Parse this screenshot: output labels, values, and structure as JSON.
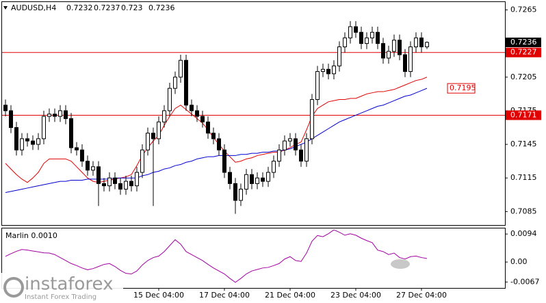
{
  "chart_data": [
    {
      "type": "candlestick",
      "title": "AUDUSD,H4",
      "categories": [
        null,
        null,
        null,
        null,
        null,
        null,
        null,
        null,
        null,
        null,
        null,
        null,
        null,
        null,
        null,
        null,
        null,
        null,
        null,
        null,
        null,
        null,
        null,
        null,
        null,
        null,
        null,
        null,
        "15 Dec 04:00",
        null,
        null,
        null,
        null,
        null,
        null,
        null,
        null,
        null,
        null,
        null,
        "17 Dec 04:00",
        null,
        null,
        null,
        null,
        null,
        null,
        null,
        null,
        null,
        null,
        null,
        "21 Dec 04:00",
        null,
        null,
        null,
        null,
        null,
        null,
        null,
        null,
        null,
        null,
        null,
        "23 Dec 04:00",
        null,
        null,
        null,
        null,
        null,
        null,
        null,
        null,
        null,
        null,
        null,
        "27 Dec 04:00",
        null
      ],
      "open": [
        0.718,
        0.7175,
        0.716,
        0.714,
        0.715,
        0.7148,
        0.7145,
        0.715,
        0.717,
        0.7172,
        0.717,
        0.7175,
        0.7168,
        0.7142,
        0.714,
        0.713,
        0.7122,
        0.7125,
        0.711,
        0.7108,
        0.7115,
        0.711,
        0.7105,
        0.7112,
        0.7108,
        0.712,
        0.714,
        0.7155,
        0.715,
        0.7165,
        0.7175,
        0.7195,
        0.7205,
        0.722,
        0.718,
        0.7175,
        0.717,
        0.7165,
        0.7155,
        0.715,
        0.714,
        0.712,
        0.711,
        0.7095,
        0.7105,
        0.7118,
        0.711,
        0.7115,
        0.7112,
        0.712,
        0.713,
        0.714,
        0.7148,
        0.715,
        0.714,
        0.713,
        0.715,
        0.7185,
        0.721,
        0.7212,
        0.7208,
        0.7215,
        0.7232,
        0.724,
        0.725,
        0.7245,
        0.7235,
        0.724,
        0.7245,
        0.7235,
        0.7222,
        0.7228,
        0.7238,
        0.7225,
        0.721,
        0.7232,
        0.724,
        0.7232
      ],
      "high": [
        0.7185,
        0.718,
        0.7165,
        0.7155,
        0.7155,
        0.7153,
        0.7155,
        0.7175,
        0.7177,
        0.7177,
        0.718,
        0.718,
        0.7173,
        0.7147,
        0.7145,
        0.7135,
        0.713,
        0.713,
        0.7115,
        0.712,
        0.712,
        0.7115,
        0.7117,
        0.7117,
        0.7125,
        0.7145,
        0.716,
        0.716,
        0.717,
        0.718,
        0.72,
        0.721,
        0.7225,
        0.7225,
        0.7185,
        0.718,
        0.7175,
        0.717,
        0.716,
        0.7155,
        0.7145,
        0.7125,
        0.7115,
        0.711,
        0.7123,
        0.7123,
        0.712,
        0.712,
        0.7125,
        0.7135,
        0.7145,
        0.7153,
        0.7155,
        0.7155,
        0.7145,
        0.7155,
        0.719,
        0.7215,
        0.7217,
        0.7217,
        0.722,
        0.7237,
        0.7245,
        0.7255,
        0.7255,
        0.725,
        0.7245,
        0.725,
        0.725,
        0.724,
        0.7233,
        0.7243,
        0.7243,
        0.723,
        0.7237,
        0.7245,
        0.7245,
        0.7237
      ],
      "low": [
        0.717,
        0.7155,
        0.7135,
        0.7135,
        0.7143,
        0.714,
        0.714,
        0.7145,
        0.7165,
        0.7165,
        0.7165,
        0.7163,
        0.7137,
        0.7135,
        0.7125,
        0.7117,
        0.7117,
        0.709,
        0.7103,
        0.7103,
        0.7105,
        0.71,
        0.71,
        0.7103,
        0.7103,
        0.7115,
        0.7135,
        0.709,
        0.7145,
        0.716,
        0.717,
        0.719,
        0.72,
        0.7175,
        0.717,
        0.7165,
        0.716,
        0.715,
        0.7145,
        0.7135,
        0.7115,
        0.7105,
        0.7083,
        0.709,
        0.71,
        0.7105,
        0.7105,
        0.7107,
        0.7107,
        0.7115,
        0.7125,
        0.7135,
        0.7143,
        0.7135,
        0.7125,
        0.7125,
        0.7145,
        0.718,
        0.7205,
        0.7203,
        0.7203,
        0.721,
        0.7227,
        0.7235,
        0.724,
        0.723,
        0.723,
        0.7235,
        0.723,
        0.7217,
        0.7217,
        0.7223,
        0.722,
        0.7205,
        0.7205,
        0.7227,
        0.7227,
        0.723
      ],
      "close": [
        0.7175,
        0.716,
        0.714,
        0.715,
        0.7148,
        0.7145,
        0.715,
        0.717,
        0.7172,
        0.717,
        0.7175,
        0.7168,
        0.7142,
        0.714,
        0.713,
        0.7122,
        0.7125,
        0.711,
        0.7108,
        0.7115,
        0.711,
        0.7105,
        0.7112,
        0.7108,
        0.712,
        0.714,
        0.7155,
        0.715,
        0.7165,
        0.7175,
        0.7195,
        0.7205,
        0.722,
        0.718,
        0.7175,
        0.717,
        0.7165,
        0.7155,
        0.715,
        0.714,
        0.712,
        0.711,
        0.7095,
        0.7105,
        0.7118,
        0.711,
        0.7115,
        0.7112,
        0.712,
        0.713,
        0.714,
        0.7148,
        0.715,
        0.714,
        0.713,
        0.715,
        0.7185,
        0.721,
        0.7212,
        0.7208,
        0.7215,
        0.7232,
        0.724,
        0.725,
        0.7245,
        0.7235,
        0.724,
        0.7245,
        0.7235,
        0.7222,
        0.7228,
        0.7238,
        0.7225,
        0.721,
        0.7232,
        0.724,
        0.7232,
        0.7236
      ],
      "series": [
        {
          "color": "#e00000",
          "values": [
            0.7128,
            0.7123,
            0.7118,
            0.7114,
            0.7111,
            0.7115,
            0.712,
            0.7128,
            0.7132,
            0.7132,
            0.7132,
            0.7132,
            0.713,
            0.7125,
            0.712,
            0.7115,
            0.7112,
            0.7111,
            0.7112,
            0.7113,
            0.7114,
            0.7115,
            0.7116,
            0.7118,
            0.7126,
            0.7135,
            0.7142,
            0.7148,
            0.7153,
            0.7162,
            0.717,
            0.7177,
            0.718,
            0.7176,
            0.7172,
            0.7168,
            0.7164,
            0.7158,
            0.7151,
            0.7145,
            0.7139,
            0.7134,
            0.7129,
            0.713,
            0.7132,
            0.7133,
            0.7135,
            0.7136,
            0.7137,
            0.7138,
            0.7138,
            0.714,
            0.7142,
            0.7145,
            0.7147,
            0.7158,
            0.717,
            0.7177,
            0.718,
            0.7183,
            0.7184,
            0.7185,
            0.7185,
            0.7186,
            0.7186,
            0.7188,
            0.719,
            0.7191,
            0.7192,
            0.7192,
            0.7193,
            0.7194,
            0.7196,
            0.7198,
            0.72,
            0.7202,
            0.7203,
            0.7205
          ]
        },
        {
          "color": "#0000d0",
          "values": [
            0.7102,
            0.7103,
            0.7104,
            0.7105,
            0.7106,
            0.7107,
            0.7108,
            0.7109,
            0.711,
            0.7111,
            0.7112,
            0.7112,
            0.7113,
            0.7113,
            0.7113,
            0.7114,
            0.7114,
            0.7114,
            0.7114,
            0.7114,
            0.7115,
            0.7115,
            0.7115,
            0.7115,
            0.7115,
            0.7117,
            0.7118,
            0.712,
            0.7121,
            0.7123,
            0.7124,
            0.7126,
            0.7127,
            0.7129,
            0.713,
            0.7132,
            0.7133,
            0.7134,
            0.7134,
            0.7135,
            0.7135,
            0.7135,
            0.7135,
            0.7136,
            0.7136,
            0.7137,
            0.7137,
            0.7138,
            0.7138,
            0.7139,
            0.7139,
            0.714,
            0.7141,
            0.7143,
            0.7145,
            0.7147,
            0.715,
            0.7153,
            0.7156,
            0.7159,
            0.7162,
            0.7165,
            0.7167,
            0.7169,
            0.7171,
            0.7173,
            0.7175,
            0.7177,
            0.7179,
            0.718,
            0.7182,
            0.7184,
            0.7186,
            0.7188,
            0.7189,
            0.7191,
            0.7193,
            0.7195
          ]
        }
      ],
      "levels": [
        {
          "value": 0.7227,
          "color": "#e00000"
        },
        {
          "value": 0.7171,
          "color": "#e00000"
        }
      ],
      "annotations": [
        {
          "value": 0.7195,
          "color": "#e00000"
        }
      ],
      "ylim": [
        0.7073,
        0.7272
      ],
      "yticks": [
        0.7265,
        0.7205,
        0.7175,
        0.7145,
        0.7115,
        0.7085
      ]
    },
    {
      "type": "line",
      "title": "Marlin 0.0010",
      "series": [
        {
          "color": "#a000a0",
          "values": [
            0.0019,
            0.0028,
            0.0036,
            0.0042,
            0.004,
            0.0037,
            0.0034,
            0.0031,
            0.003,
            0.0025,
            0.0015,
            0.0005,
            -0.0005,
            -0.0012,
            -0.002,
            -0.0026,
            -0.0022,
            -0.0015,
            -0.0008,
            -0.0005,
            -0.0015,
            -0.0028,
            -0.0038,
            -0.004,
            -0.003,
            -0.001,
            0.0005,
            0.0015,
            0.002,
            0.0035,
            0.0055,
            0.0075,
            0.006,
            0.0035,
            0.0025,
            0.0015,
            0.0005,
            -0.0008,
            -0.002,
            -0.003,
            -0.004,
            -0.0055,
            -0.0068,
            -0.0055,
            -0.004,
            -0.003,
            -0.0025,
            -0.002,
            -0.0018,
            -0.0012,
            -0.0005,
            0.001,
            0.0018,
            0.0005,
            0.0002,
            0.003,
            0.007,
            0.0089,
            0.0085,
            0.0095,
            0.0108,
            0.01,
            0.009,
            0.0095,
            0.009,
            0.008,
            0.0072,
            0.0065,
            0.004,
            0.0035,
            0.0025,
            0.003,
            0.0015,
            0.001,
            0.0018,
            0.002,
            0.0015,
            0.0012
          ]
        }
      ],
      "ylim": [
        -0.0087,
        0.0115
      ],
      "yticks": [
        0.0094,
        {
          "value": 0,
          "label": "0.00"
        },
        -0.0067
      ]
    }
  ],
  "watermark": {
    "brand": "instaforex",
    "tagline": "Instant Forex Trading"
  }
}
